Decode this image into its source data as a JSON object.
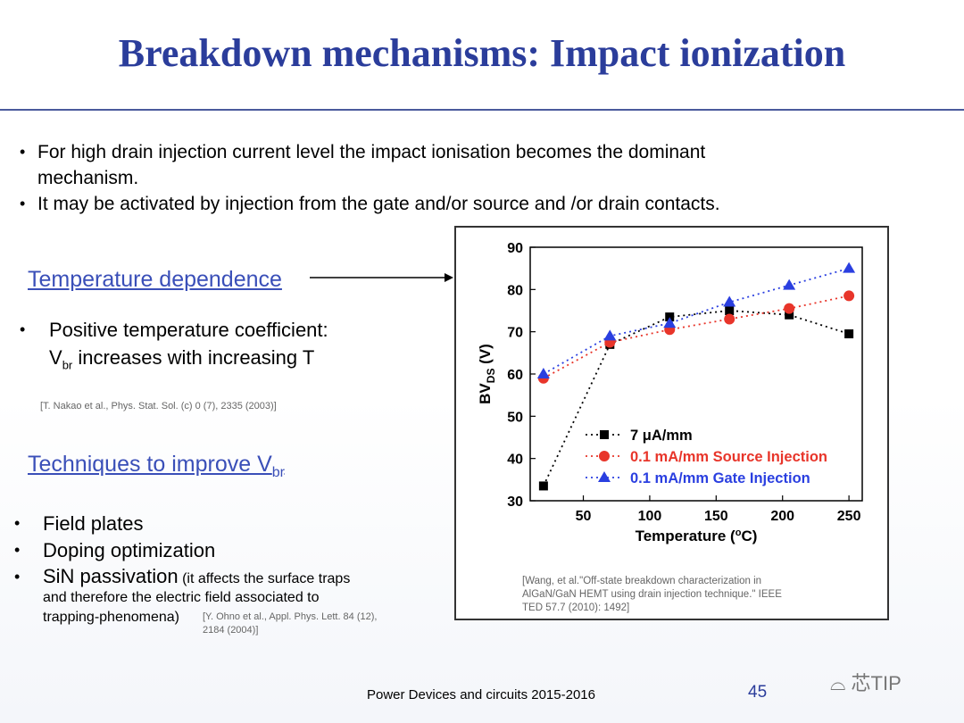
{
  "slide": {
    "title": "Breakdown mechanisms: Impact ionization",
    "bullets": [
      "For high drain injection current level the impact ionisation becomes the dominant",
      "mechanism.",
      "It may be activated by injection from the gate and/or source and /or drain contacts."
    ],
    "temp_heading": "Temperature dependence",
    "temp_bullet_1": "Positive temperature coefficient:",
    "temp_bullet_2_a": "V",
    "temp_bullet_2_sub": "br",
    "temp_bullet_2_b": " increases with increasing T",
    "nakao_ref": "[T. Nakao et al., Phys. Stat. Sol. (c) 0 (7), 2335 (2003)]",
    "techniques_heading_a": "Techniques to improve V",
    "techniques_heading_sub": "br",
    "techniques": [
      "Field plates",
      "Doping optimization",
      "SiN passivation"
    ],
    "sin_note_1": " (it affects the surface traps",
    "sin_note_2": "and therefore the electric field associated to",
    "sin_note_3": "trapping-phenomena)",
    "ohno_ref_1": "[Y. Ohno et al., Appl. Phys. Lett. 84 (12),",
    "ohno_ref_2": "2184 (2004)]",
    "wang_ref_1": "[Wang, et al.\"Off-state breakdown characterization in",
    "wang_ref_2": "AlGaN/GaN HEMT using drain injection technique.\" IEEE",
    "wang_ref_3": "TED 57.7 (2010): 1492]",
    "footer": "Power Devices and circuits 2015-2016",
    "page_number": "45",
    "logo_text": "芯TIP"
  },
  "chart_data": {
    "type": "scatter",
    "xlabel": "Temperature (°C)",
    "ylabel": "BVDS (V)",
    "xlim": [
      10,
      260
    ],
    "ylim": [
      30,
      90
    ],
    "xticks": [
      50,
      100,
      150,
      200,
      250
    ],
    "yticks": [
      30,
      40,
      50,
      60,
      70,
      80,
      90
    ],
    "legend_position": "bottom-right",
    "series": [
      {
        "name": "7 μA/mm",
        "color": "#000000",
        "marker": "square",
        "x": [
          20,
          70,
          115,
          160,
          205,
          250
        ],
        "y": [
          33.5,
          67,
          73.5,
          75,
          74,
          69.5
        ]
      },
      {
        "name": "0.1 mA/mm Source Injection",
        "color": "#e8352a",
        "marker": "circle",
        "x": [
          20,
          70,
          115,
          160,
          205,
          250
        ],
        "y": [
          59,
          67.5,
          70.5,
          73,
          75.5,
          78.5
        ]
      },
      {
        "name": "0.1 mA/mm Gate Injection",
        "color": "#2a3fe0",
        "marker": "triangle",
        "x": [
          20,
          70,
          115,
          160,
          205,
          250
        ],
        "y": [
          60,
          69,
          72,
          77,
          81,
          85
        ]
      }
    ]
  }
}
